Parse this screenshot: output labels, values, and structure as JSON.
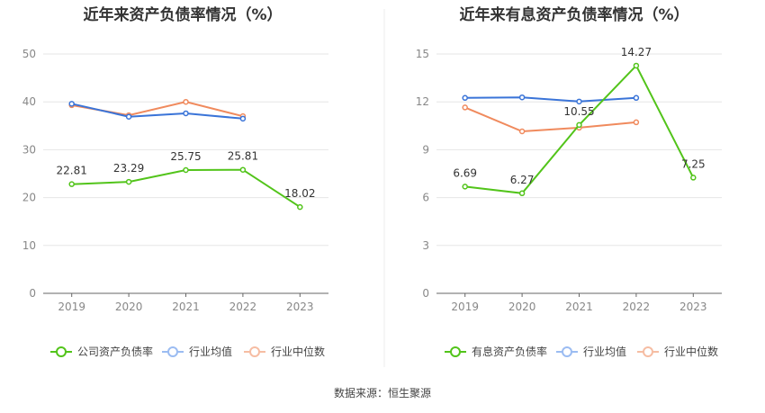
{
  "source_text": "数据来源：恒生聚源",
  "chart_data": [
    {
      "type": "line",
      "title": "近年来资产负债率情况（%）",
      "categories": [
        "2019",
        "2020",
        "2021",
        "2022",
        "2023"
      ],
      "ylim": [
        0,
        50
      ],
      "yticks": [
        0,
        10,
        20,
        30,
        40,
        50
      ],
      "grid": true,
      "legend_position": "bottom",
      "series": [
        {
          "name": "公司资产负债率",
          "color": "#52c41a",
          "values": [
            22.81,
            23.29,
            25.75,
            25.81,
            18.02
          ],
          "labels": true
        },
        {
          "name": "行业均值",
          "color": "#3a74d8",
          "values": [
            39.6,
            36.9,
            37.6,
            36.5,
            null
          ],
          "labels": false
        },
        {
          "name": "行业中位数",
          "color": "#f08a5d",
          "values": [
            39.3,
            37.2,
            40.0,
            37.0,
            null
          ],
          "labels": false
        }
      ]
    },
    {
      "type": "line",
      "title": "近年来有息资产负债率情况（%）",
      "categories": [
        "2019",
        "2020",
        "2021",
        "2022",
        "2023"
      ],
      "ylim": [
        0,
        15
      ],
      "yticks": [
        0,
        3,
        6,
        9,
        12,
        15
      ],
      "grid": true,
      "legend_position": "bottom",
      "series": [
        {
          "name": "有息资产负债率",
          "color": "#52c41a",
          "values": [
            6.69,
            6.27,
            10.55,
            14.27,
            7.25
          ],
          "labels": true
        },
        {
          "name": "行业均值",
          "color": "#3a74d8",
          "values": [
            12.25,
            12.28,
            12.02,
            12.25,
            null
          ],
          "labels": false
        },
        {
          "name": "行业中位数",
          "color": "#f08a5d",
          "values": [
            11.65,
            10.15,
            10.38,
            10.72,
            null
          ],
          "labels": false
        }
      ]
    }
  ]
}
